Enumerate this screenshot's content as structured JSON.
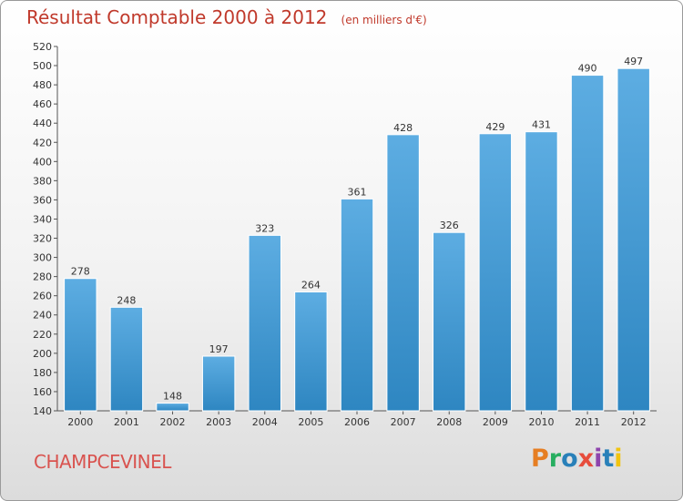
{
  "title": "Résultat Comptable 2000 à 2012",
  "unit": "(en milliers d'€)",
  "commune": "CHAMPCEVINEL",
  "brand": {
    "name": "Proxiti",
    "letters": [
      {
        "ch": "P",
        "color": "#e67e22"
      },
      {
        "ch": "r",
        "color": "#27ae60"
      },
      {
        "ch": "o",
        "color": "#2980b9"
      },
      {
        "ch": "x",
        "color": "#e74c3c"
      },
      {
        "ch": "i",
        "color": "#8e44ad"
      },
      {
        "ch": "t",
        "color": "#2980b9"
      },
      {
        "ch": "i",
        "color": "#f1c40f"
      }
    ]
  },
  "colors": {
    "bar_top": "#5dade2",
    "bar_bottom": "#2e86c1",
    "title": "#c0392b",
    "commune": "#d9534f"
  },
  "chart_data": {
    "type": "bar",
    "categories": [
      "2000",
      "2001",
      "2002",
      "2003",
      "2004",
      "2005",
      "2006",
      "2007",
      "2008",
      "2009",
      "2010",
      "2011",
      "2012"
    ],
    "values": [
      278,
      248,
      148,
      197,
      323,
      264,
      361,
      428,
      326,
      429,
      431,
      490,
      497
    ],
    "ylim": [
      140,
      520
    ],
    "yticks": [
      140,
      160,
      180,
      200,
      220,
      240,
      260,
      280,
      300,
      320,
      340,
      360,
      380,
      400,
      420,
      440,
      460,
      480,
      500,
      520
    ],
    "grid": false,
    "legend": "none"
  }
}
